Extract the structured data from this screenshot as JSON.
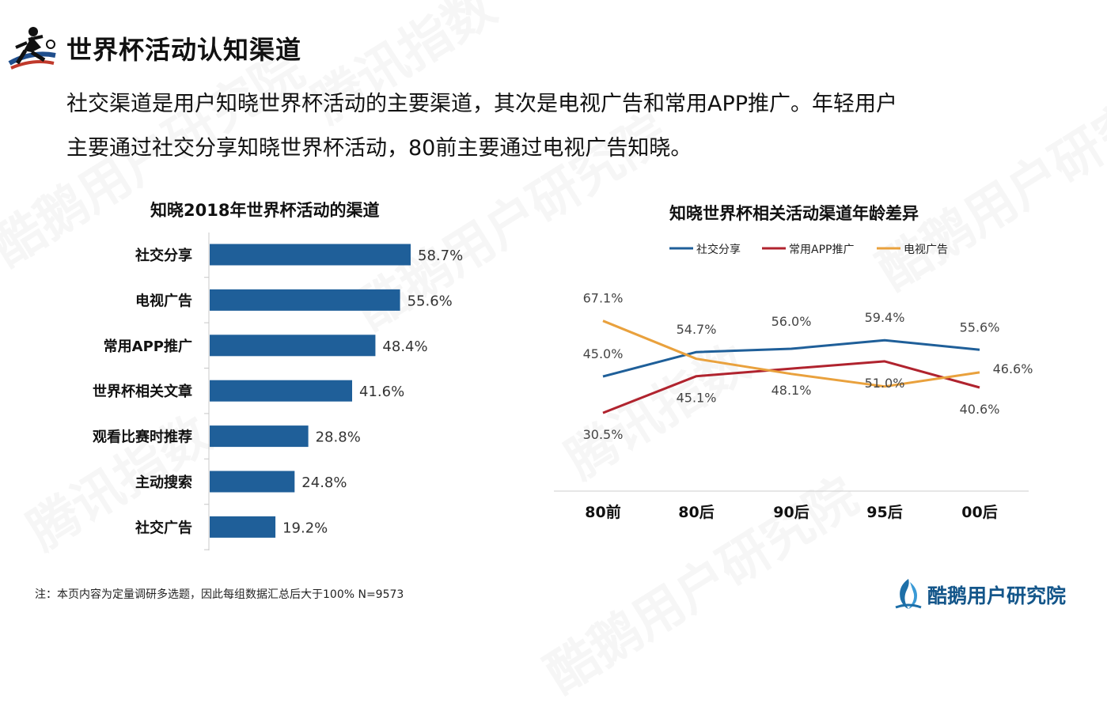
{
  "header": {
    "title": "世界杯活动认知渠道",
    "summary_line1": "社交渠道是用户知晓世界杯活动的主要渠道，其次是电视广告和常用APP推广。年轻用户",
    "summary_line2": "主要通过社交分享知晓世界杯活动，80前主要通过电视广告知晓。"
  },
  "watermarks": [
    "腾讯指数",
    "酷鹅用户研究院"
  ],
  "chart_data": [
    {
      "type": "bar",
      "orientation": "horizontal",
      "title": "知晓2018年世界杯活动的渠道",
      "categories": [
        "社交分享",
        "电视广告",
        "常用APP推广",
        "世界杯相关文章",
        "观看比赛时推荐",
        "主动搜索",
        "社交广告"
      ],
      "values": [
        58.7,
        55.6,
        48.4,
        41.6,
        28.8,
        24.8,
        19.2
      ],
      "value_labels": [
        "58.7%",
        "55.6%",
        "48.4%",
        "41.6%",
        "28.8%",
        "24.8%",
        "19.2%"
      ],
      "unit": "%",
      "color": "#1f5f99",
      "grid": false
    },
    {
      "type": "line",
      "title": "知晓世界杯相关活动渠道年龄差异",
      "categories": [
        "80前",
        "80后",
        "90后",
        "95后",
        "00后"
      ],
      "ylim": [
        20,
        75
      ],
      "legend_position": "top",
      "grid": false,
      "series": [
        {
          "name": "社交分享",
          "color": "#1f5f99",
          "values": [
            45.0,
            54.7,
            56.0,
            59.4,
            55.6
          ],
          "labels": [
            "45.0%",
            "54.7%",
            "56.0%",
            "59.4%",
            "55.6%"
          ]
        },
        {
          "name": "常用APP推广",
          "color": "#b0232e",
          "values": [
            30.5,
            45.1,
            48.1,
            51.0,
            40.6
          ],
          "labels": [
            "30.5%",
            "45.1%",
            "48.1%",
            "51.0%",
            "40.6%"
          ]
        },
        {
          "name": "电视广告",
          "color": "#e9a13d",
          "values": [
            67.1,
            52.0,
            46.0,
            41.0,
            46.6
          ],
          "labels": [
            "67.1%",
            "",
            "",
            "",
            "46.6%"
          ]
        }
      ]
    }
  ],
  "footer": {
    "note": "注：本页内容为定量调研多选题，因此每组数据汇总后大于100%   N=9573",
    "brand": "酷鹅用户研究院"
  }
}
